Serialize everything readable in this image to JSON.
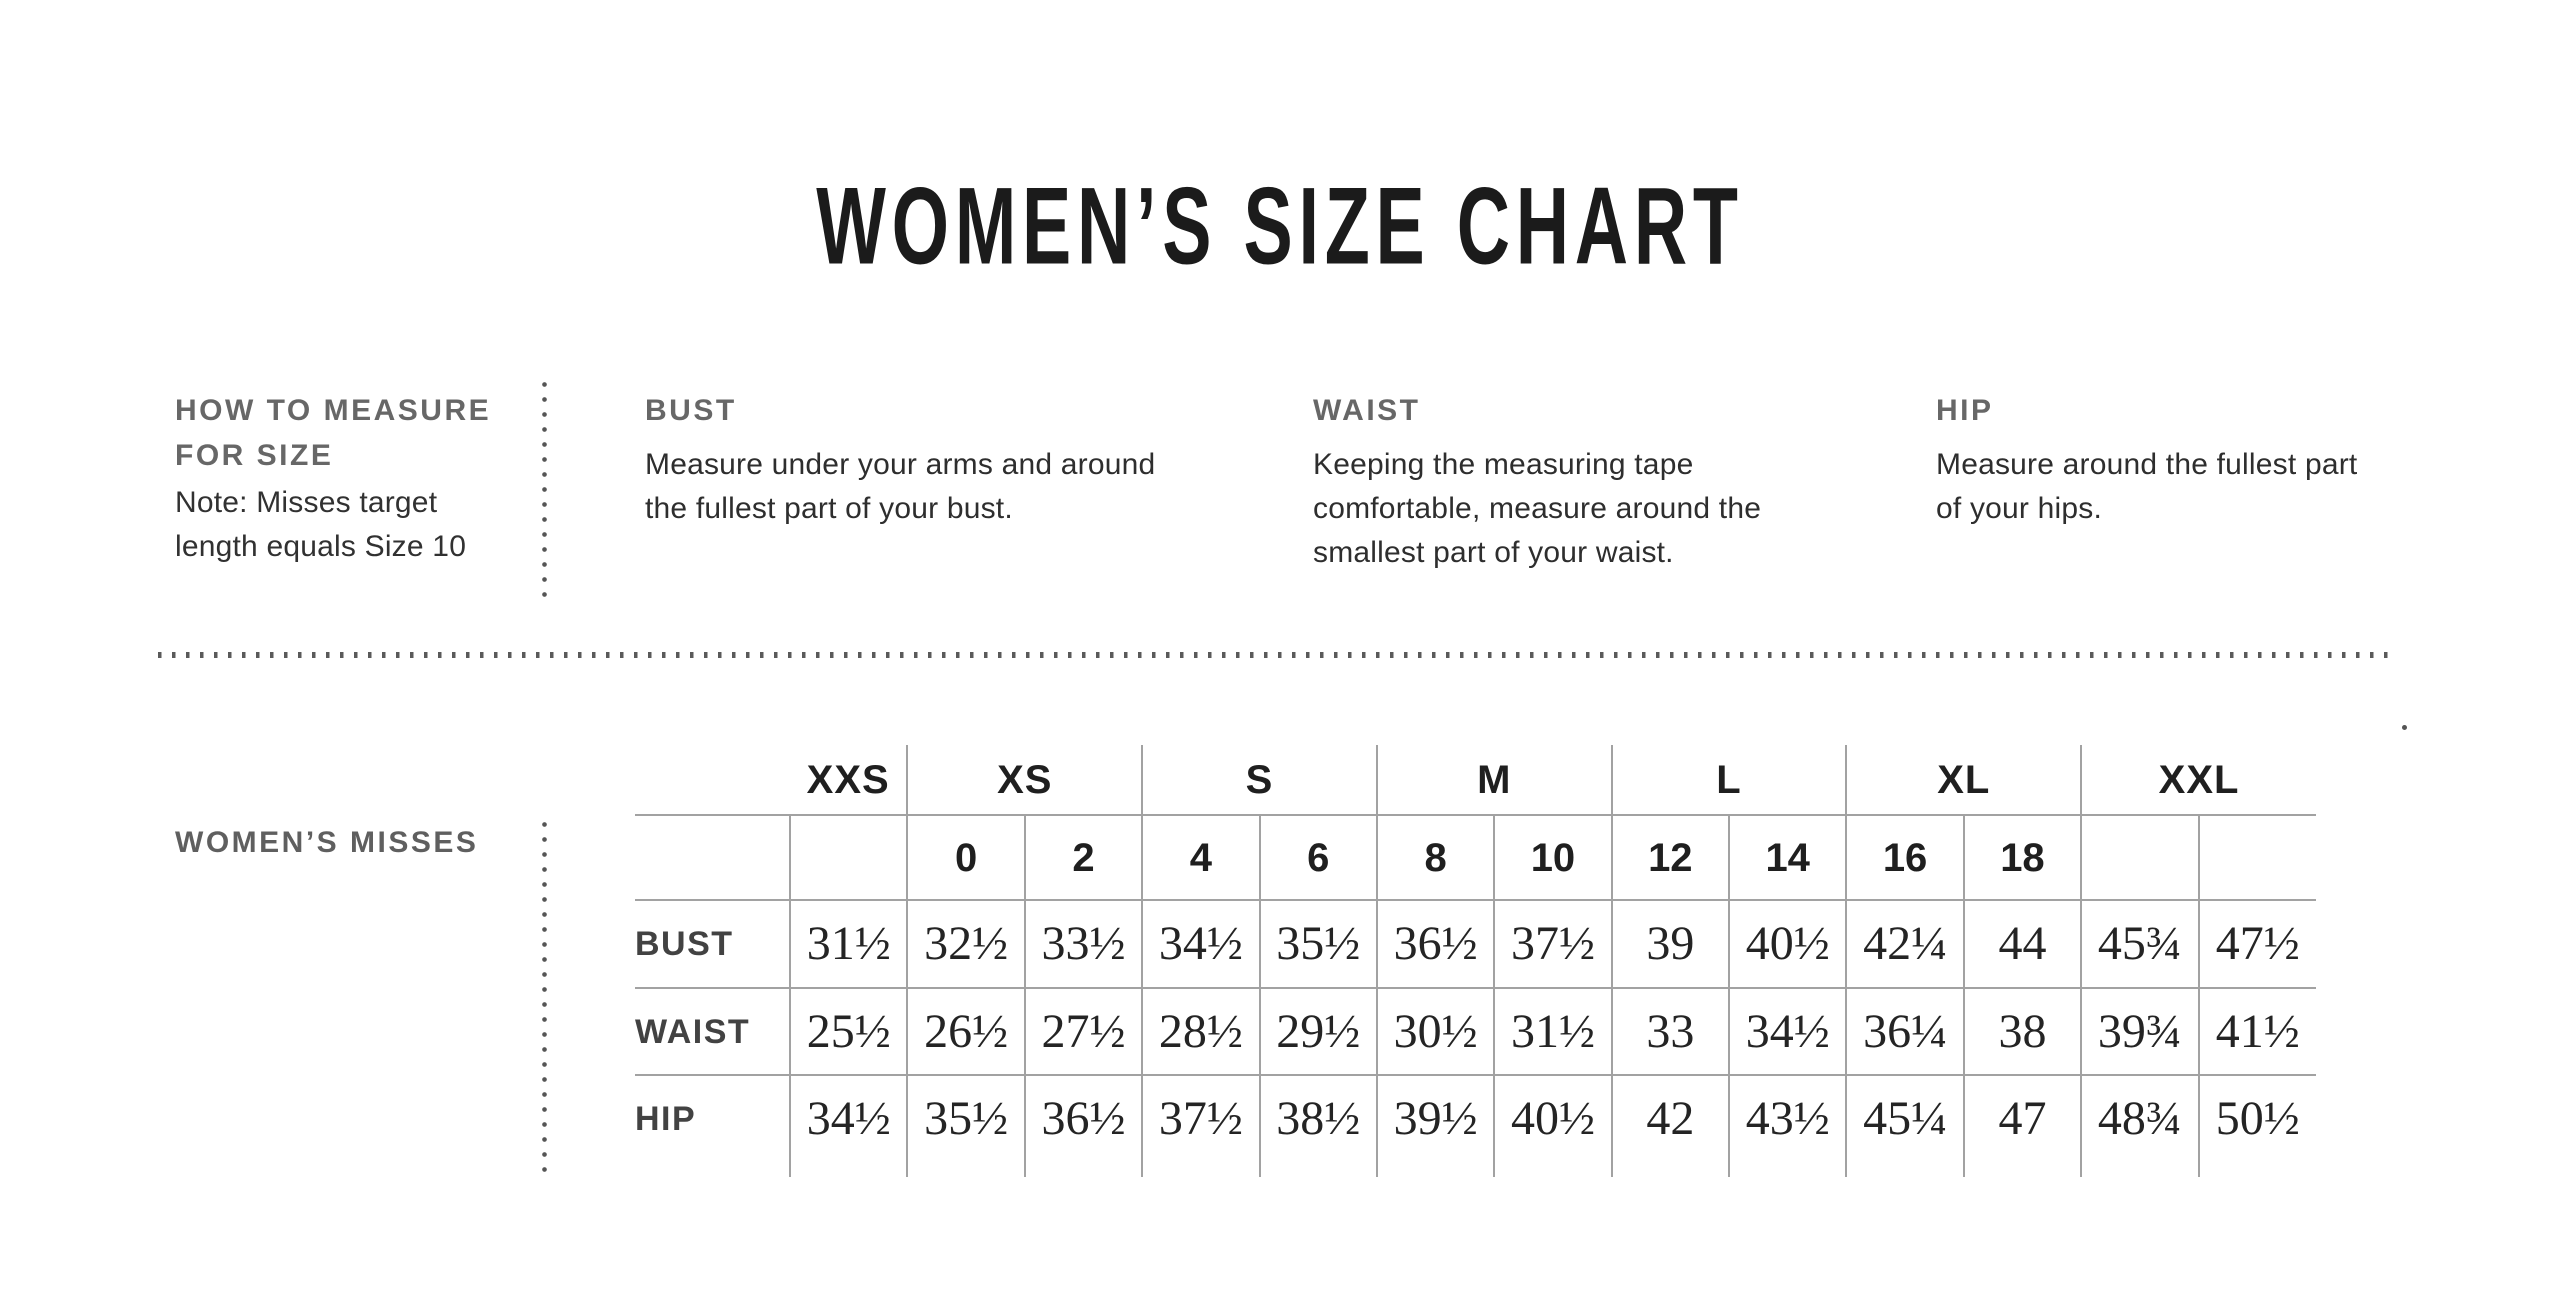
{
  "title": "WOMEN’S SIZE CHART",
  "how_to_measure": {
    "heading_lines": [
      "HOW TO MEASURE",
      "FOR SIZE"
    ],
    "note_lines": [
      "Note: Misses target",
      "length equals Size 10"
    ]
  },
  "measure_sections": [
    {
      "heading": "BUST",
      "text_lines": [
        "Measure under your arms and around",
        "the fullest part of your bust."
      ]
    },
    {
      "heading": "WAIST",
      "text_lines": [
        "Keeping the measuring tape",
        "comfortable, measure around the",
        "smallest part of your waist."
      ]
    },
    {
      "heading": "HIP",
      "text_lines": [
        "Measure around the fullest part",
        "of your hips."
      ]
    }
  ],
  "size_table": {
    "section_label": "WOMEN’S MISSES",
    "group_headers": [
      {
        "label": "XXS",
        "span": 1
      },
      {
        "label": "XS",
        "span": 2
      },
      {
        "label": "S",
        "span": 2
      },
      {
        "label": "M",
        "span": 2
      },
      {
        "label": "L",
        "span": 2
      },
      {
        "label": "XL",
        "span": 2
      },
      {
        "label": "XXL",
        "span": 2
      }
    ],
    "numeric_sizes": [
      "",
      "0",
      "2",
      "4",
      "6",
      "8",
      "10",
      "12",
      "14",
      "16",
      "18",
      "",
      ""
    ],
    "measurement_rows": [
      {
        "label": "BUST",
        "values": [
          "31½",
          "32½",
          "33½",
          "34½",
          "35½",
          "36½",
          "37½",
          "39",
          "40½",
          "42¼",
          "44",
          "45¾",
          "47½"
        ]
      },
      {
        "label": "WAIST",
        "values": [
          "25½",
          "26½",
          "27½",
          "28½",
          "29½",
          "30½",
          "31½",
          "33",
          "34½",
          "36¼",
          "38",
          "39¾",
          "41½"
        ]
      },
      {
        "label": "HIP",
        "values": [
          "34½",
          "35½",
          "36½",
          "37½",
          "38½",
          "39½",
          "40½",
          "42",
          "43½",
          "45¼",
          "47",
          "48¾",
          "50½"
        ]
      }
    ]
  },
  "colors": {
    "ink": "#1b1b1b",
    "gray_heading": "#676767",
    "body_text": "#2e2e2e",
    "table_line": "#a2a2a2",
    "dots": "#555555"
  }
}
